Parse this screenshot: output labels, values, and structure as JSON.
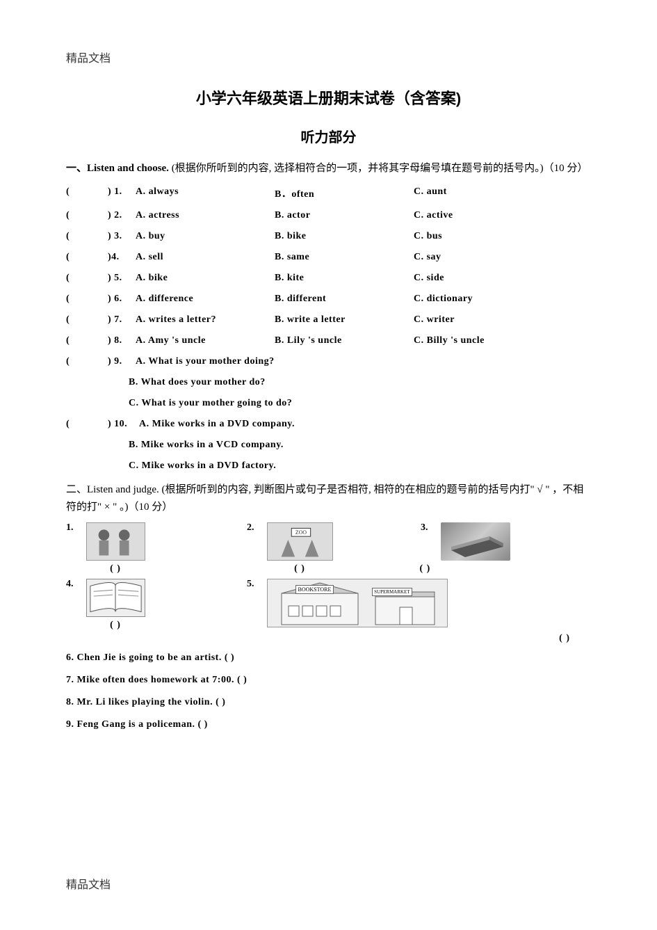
{
  "header_label": "精品文档",
  "footer_label": "精品文档",
  "main_title": "小学六年级英语上册期末试卷（含答案)",
  "listening_title": "听力部分",
  "section1": {
    "label": "一、Listen and choose.",
    "instruction": " (根据你所听到的内容, 选择相符合的一项，并将其字母编号填在题号前的括号内。)（10 分）",
    "questions": [
      {
        "num": "1.",
        "a": "A. always",
        "b": "B．often",
        "c": "C. aunt"
      },
      {
        "num": "2.",
        "a": "A. actress",
        "b": "B. actor",
        "c": "C. active"
      },
      {
        "num": "3.",
        "a": "A. buy",
        "b": "B. bike",
        "c": "C. bus"
      },
      {
        "num": "4.",
        "a": "A. sell",
        "b": "B. same",
        "c": "C. say",
        "bracket_close": ")4."
      },
      {
        "num": "5.",
        "a": "A. bike",
        "b": "B. kite",
        "c": "C. side"
      },
      {
        "num": "6.",
        "a": "A. difference",
        "b": "B. different",
        "c": "C. dictionary"
      },
      {
        "num": "7.",
        "a": "A. writes a letter?",
        "b": "B. write a letter",
        "c": "C. writer"
      },
      {
        "num": "8.",
        "a": "A. Amy 's uncle",
        "b": "B. Lily 's uncle",
        "c": "C. Billy 's uncle"
      }
    ],
    "q9": {
      "num": ") 9.",
      "a": "A. What is your mother doing?",
      "b": "B. What does your mother do?",
      "c": "C. What is your mother going to do?"
    },
    "q10": {
      "num": ") 10.",
      "a": "A. Mike works in a DVD company.",
      "b": "B. Mike works in a VCD company.",
      "c": "C. Mike works in a DVD factory."
    }
  },
  "section2": {
    "label": "二、Listen and judge.",
    "instruction": " (根据所听到的内容, 判断图片或句子是否相符, 相符的在相应的题号前的括号内打\" √ \" ，不相符的打\" × \" 。)（10 分）",
    "img_nums": {
      "n1": "1.",
      "n2": "2.",
      "n3": "3.",
      "n4": "4.",
      "n5": "5."
    },
    "paren": "(            )",
    "paren_short": "(        )",
    "text_questions": [
      "6. Chen Jie is going to be an artist.      (            )",
      "7. Mike often does homework at 7:00. (             )",
      "8. Mr. Li likes playing the violin. (            )",
      "9. Feng Gang is a policeman. (             )"
    ],
    "labels": {
      "bookstore": "BOOKSTORE",
      "supermarket": "SUPERMARKET"
    }
  },
  "bracket_open": "(",
  "bracket_pair": ") "
}
